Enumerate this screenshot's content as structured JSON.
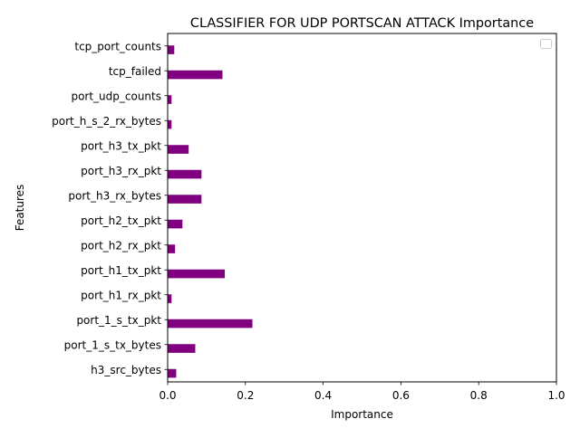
{
  "chart_data": {
    "type": "bar",
    "orientation": "horizontal",
    "title": "CLASSIFIER FOR UDP PORTSCAN ATTACK Importance",
    "xlabel": "Importance",
    "ylabel": "Features",
    "xlim": [
      0,
      1
    ],
    "xticks": [
      "0.0",
      "0.2",
      "0.4",
      "0.6",
      "0.8",
      "1.0"
    ],
    "grid": false,
    "legend": "top-right",
    "bar_color": "#800080",
    "categories": [
      "h3_src_bytes",
      "port_1_s_tx_bytes",
      "port_1_s_tx_pkt",
      "port_h1_rx_pkt",
      "port_h1_tx_pkt",
      "port_h2_rx_pkt",
      "port_h2_tx_pkt",
      "port_h3_rx_bytes",
      "port_h3_rx_pkt",
      "port_h3_tx_pkt",
      "port_h_s_2_rx_bytes",
      "port_udp_counts",
      "tcp_failed",
      "tcp_port_counts"
    ],
    "values": [
      0.022,
      0.071,
      0.218,
      0.01,
      0.147,
      0.019,
      0.038,
      0.087,
      0.087,
      0.054,
      0.01,
      0.01,
      0.141,
      0.017
    ]
  }
}
